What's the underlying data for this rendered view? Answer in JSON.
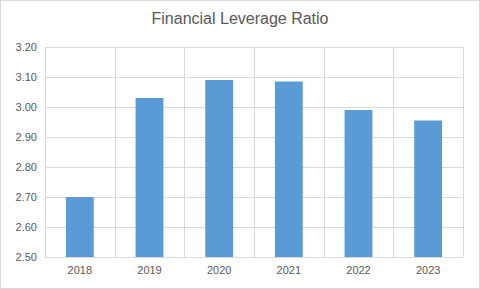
{
  "chart_data": {
    "type": "bar",
    "title": "Financial Leverage Ratio",
    "categories": [
      "2018",
      "2019",
      "2020",
      "2021",
      "2022",
      "2023"
    ],
    "values": [
      2.7,
      3.03,
      3.09,
      3.085,
      2.99,
      2.955
    ],
    "color": "#5b9bd5",
    "ylim": [
      2.5,
      3.2
    ],
    "yticks": [
      {
        "value": 2.5,
        "label": "2.50"
      },
      {
        "value": 2.6,
        "label": "2.60"
      },
      {
        "value": 2.7,
        "label": "2.70"
      },
      {
        "value": 2.8,
        "label": "2.80"
      },
      {
        "value": 2.9,
        "label": "2.90"
      },
      {
        "value": 3.0,
        "label": "3.00"
      },
      {
        "value": 3.1,
        "label": "3.10"
      },
      {
        "value": 3.2,
        "label": "3.20"
      }
    ],
    "grid": true
  }
}
